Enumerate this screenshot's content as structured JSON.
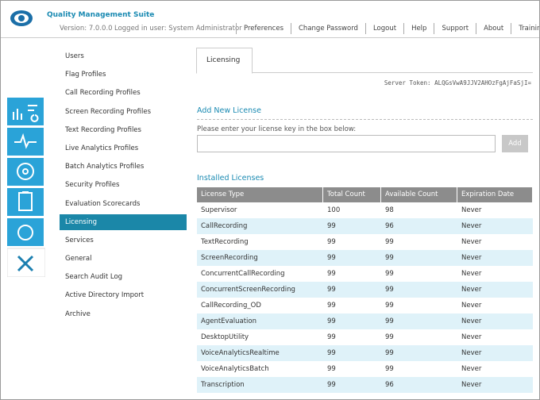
{
  "header": {
    "title": "Quality Management Suite",
    "version": "Version: 7.0.0.0",
    "logged_in": "Logged in user: System Administrator",
    "nav": [
      "Preferences",
      "Change Password",
      "Logout",
      "Help",
      "Support",
      "About",
      "Training"
    ]
  },
  "sidebar": {
    "items": [
      "Users",
      "Flag Profiles",
      "Call Recording Profiles",
      "Screen Recording Profiles",
      "Text Recording Profiles",
      "Live Analytics Profiles",
      "Batch Analytics Profiles",
      "Security Profiles",
      "Evaluation Scorecards",
      "Licensing",
      "Services",
      "General",
      "Search Audit Log",
      "Active Directory Import",
      "Archive"
    ],
    "active": "Licensing"
  },
  "tab": "Licensing",
  "server_token": "Server Token: ALQGsVwA9JJV2AHOzFgAjFaSjI=",
  "add_license": {
    "title": "Add New License",
    "prompt": "Please enter your license key in the box below:",
    "button": "Add"
  },
  "installed": {
    "title": "Installed Licenses",
    "columns": [
      "License Type",
      "Total Count",
      "Available Count",
      "Expiration Date"
    ],
    "rows": [
      [
        "Supervisor",
        100,
        98,
        "Never"
      ],
      [
        "CallRecording",
        99,
        96,
        "Never"
      ],
      [
        "TextRecording",
        99,
        99,
        "Never"
      ],
      [
        "ScreenRecording",
        99,
        99,
        "Never"
      ],
      [
        "ConcurrentCallRecording",
        99,
        99,
        "Never"
      ],
      [
        "ConcurrentScreenRecording",
        99,
        99,
        "Never"
      ],
      [
        "CallRecording_OD",
        99,
        99,
        "Never"
      ],
      [
        "AgentEvaluation",
        99,
        99,
        "Never"
      ],
      [
        "DesktopUtility",
        99,
        99,
        "Never"
      ],
      [
        "VoiceAnalyticsRealtime",
        99,
        99,
        "Never"
      ],
      [
        "VoiceAnalyticsBatch",
        99,
        99,
        "Never"
      ],
      [
        "Transcription",
        99,
        96,
        "Never"
      ]
    ]
  }
}
